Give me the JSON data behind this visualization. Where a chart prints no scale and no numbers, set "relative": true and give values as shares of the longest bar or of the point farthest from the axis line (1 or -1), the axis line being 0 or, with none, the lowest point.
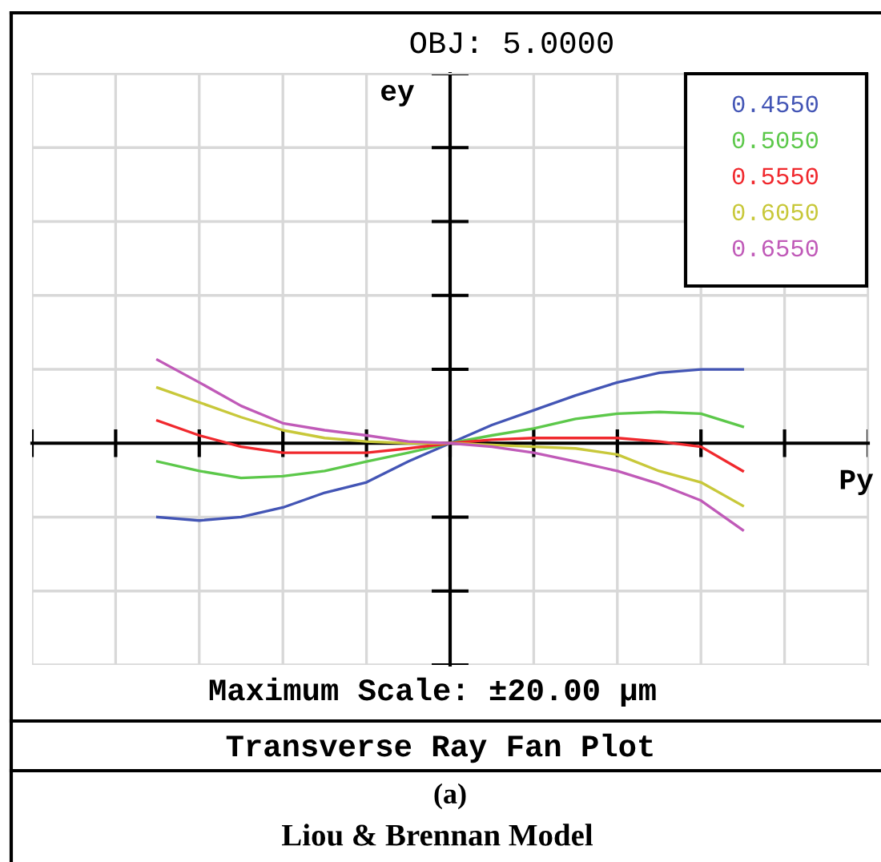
{
  "chart_data": {
    "type": "line",
    "title": "OBJ: 5.0000",
    "xlabel": "Py",
    "annotations": [
      "ey",
      "Maximum Scale: ±20.00 µm",
      "Transverse Ray Fan Plot",
      "(a)",
      "Liou & Brennan Model"
    ],
    "categories": [
      null,
      null,
      null,
      null,
      null,
      null,
      null,
      null,
      null,
      null,
      null,
      null,
      null,
      null,
      null
    ],
    "relative": true,
    "series": [
      {
        "name": "0.4550",
        "color": "#4355b5",
        "values": [
          -0.85,
          -0.89,
          -0.85,
          -0.74,
          -0.57,
          -0.45,
          -0.21,
          0,
          0.21,
          0.38,
          0.55,
          0.7,
          0.81,
          0.85,
          0.85
        ]
      },
      {
        "name": "0.5050",
        "color": "#5cc84a",
        "values": [
          -0.21,
          -0.32,
          -0.4,
          -0.38,
          -0.32,
          -0.21,
          -0.11,
          0,
          0.09,
          0.17,
          0.28,
          0.34,
          0.36,
          0.34,
          0.19
        ]
      },
      {
        "name": "0.5550",
        "color": "#f0282d",
        "values": [
          0.26,
          0.09,
          -0.04,
          -0.11,
          -0.11,
          -0.11,
          -0.06,
          0,
          0.04,
          0.06,
          0.06,
          0.06,
          0.02,
          -0.04,
          -0.32
        ]
      },
      {
        "name": "0.6050",
        "color": "#c8c83a",
        "values": [
          0.64,
          0.47,
          0.3,
          0.15,
          0.06,
          0.02,
          0,
          0,
          -0.02,
          -0.04,
          -0.06,
          -0.13,
          -0.32,
          -0.45,
          -0.72
        ]
      },
      {
        "name": "0.6550",
        "color": "#c05ab8",
        "values": [
          0.96,
          0.7,
          0.43,
          0.23,
          0.15,
          0.09,
          0.02,
          0,
          -0.04,
          -0.11,
          -0.21,
          -0.32,
          -0.47,
          -0.66,
          -1
        ]
      }
    ],
    "grid": true,
    "line_style": "solid"
  }
}
